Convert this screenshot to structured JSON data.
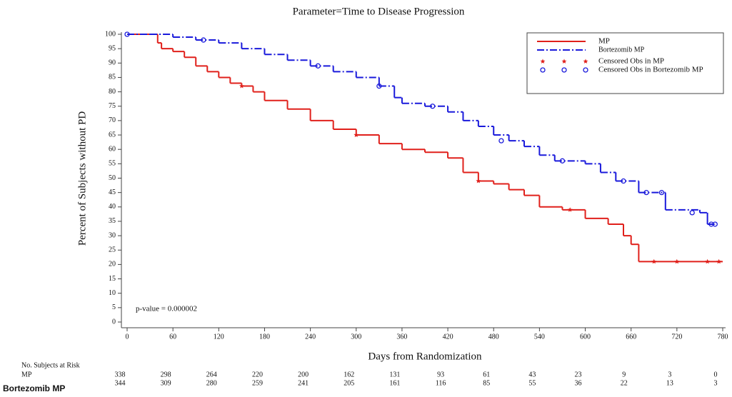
{
  "chart_data": {
    "type": "step",
    "title": "Parameter=Time to Disease Progression",
    "x_label": "Days from Randomization",
    "y_label": "Percent of Subjects without PD",
    "annotation": "p-value = 0.000002",
    "xlim": [
      0,
      780
    ],
    "xticks": [
      0,
      60,
      120,
      180,
      240,
      300,
      360,
      420,
      480,
      540,
      600,
      660,
      720,
      780
    ],
    "ylim": [
      0,
      100
    ],
    "yticks": [
      0,
      5,
      10,
      15,
      20,
      25,
      30,
      35,
      40,
      45,
      50,
      55,
      60,
      65,
      70,
      75,
      80,
      85,
      90,
      95,
      100
    ],
    "legend": "upper right",
    "series": [
      {
        "name": "MP",
        "color": "#e0201b",
        "style": "solid",
        "marker": "star",
        "censored_name": "Censored Obs in MP",
        "x": [
          0,
          20,
          40,
          45,
          60,
          75,
          90,
          105,
          120,
          135,
          150,
          165,
          180,
          210,
          240,
          270,
          300,
          330,
          360,
          390,
          420,
          440,
          460,
          480,
          500,
          520,
          540,
          570,
          600,
          630,
          650,
          660,
          670,
          780
        ],
        "values": [
          100,
          100,
          97,
          95,
          94,
          92,
          89,
          87,
          85,
          83,
          82,
          80,
          77,
          74,
          70,
          67,
          65,
          62,
          60,
          59,
          57,
          52,
          49,
          48,
          46,
          44,
          40,
          39,
          36,
          34,
          30,
          27,
          21,
          21
        ],
        "censored_x": [
          150,
          300,
          460,
          580,
          690,
          720,
          760,
          775
        ],
        "censored_values": [
          82,
          65,
          49,
          39,
          21,
          21,
          21,
          21
        ]
      },
      {
        "name": "Bortezomib MP",
        "color": "#1a1adb",
        "style": "dashdot",
        "marker": "circle",
        "censored_name": "Censored Obs in Bortezomib MP",
        "x": [
          0,
          30,
          60,
          90,
          120,
          150,
          180,
          210,
          240,
          270,
          300,
          330,
          350,
          360,
          390,
          420,
          440,
          460,
          480,
          500,
          520,
          540,
          560,
          600,
          620,
          640,
          670,
          705,
          750,
          760,
          770
        ],
        "values": [
          100,
          100,
          99,
          98,
          97,
          95,
          93,
          91,
          89,
          87,
          85,
          82,
          78,
          76,
          75,
          73,
          70,
          68,
          65,
          63,
          61,
          58,
          56,
          55,
          52,
          49,
          45,
          39,
          38,
          34,
          34
        ],
        "censored_x": [
          0,
          100,
          250,
          330,
          400,
          490,
          570,
          650,
          680,
          700,
          740,
          765,
          770
        ],
        "censored_values": [
          100,
          98,
          89,
          82,
          75,
          63,
          56,
          49,
          45,
          45,
          38,
          34,
          34
        ]
      }
    ],
    "at_risk": {
      "title": "No. Subjects at Risk",
      "rows": [
        {
          "label": "MP",
          "values": [
            338,
            298,
            264,
            220,
            200,
            162,
            131,
            93,
            61,
            43,
            23,
            9,
            3,
            0
          ]
        },
        {
          "label": "Bortezomib MP",
          "values": [
            344,
            309,
            280,
            259,
            241,
            205,
            161,
            116,
            85,
            55,
            36,
            22,
            13,
            3
          ]
        }
      ]
    }
  }
}
